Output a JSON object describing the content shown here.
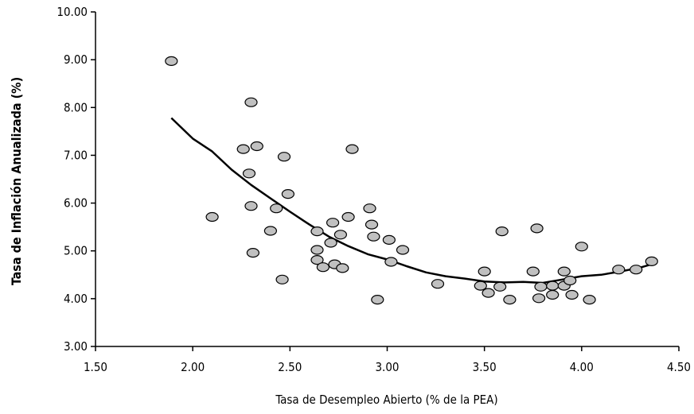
{
  "chart_data": {
    "type": "scatter",
    "title": "",
    "xlabel": "Tasa de Desempleo Abierto (% de la PEA)",
    "ylabel": "Tasa de Inflación Anualizada (%)",
    "xlim": [
      1.5,
      4.5
    ],
    "ylim": [
      3.0,
      10.0
    ],
    "x_ticks": [
      "1.50",
      "2.00",
      "2.50",
      "3.00",
      "3.50",
      "4.00",
      "4.50"
    ],
    "y_ticks": [
      "3.00",
      "4.00",
      "5.00",
      "6.00",
      "7.00",
      "8.00",
      "9.00",
      "10.00"
    ],
    "grid": false,
    "legend": "none",
    "colors": {
      "marker_fill": "#c0c0c0",
      "marker_edge": "#000000",
      "trend": "#000000"
    },
    "series": [
      {
        "kind": "points",
        "points": [
          [
            1.89,
            8.97
          ],
          [
            2.1,
            5.71
          ],
          [
            2.26,
            7.13
          ],
          [
            2.29,
            6.62
          ],
          [
            2.3,
            8.11
          ],
          [
            2.3,
            5.94
          ],
          [
            2.31,
            4.96
          ],
          [
            2.33,
            7.19
          ],
          [
            2.4,
            5.42
          ],
          [
            2.43,
            5.89
          ],
          [
            2.46,
            4.4
          ],
          [
            2.47,
            6.97
          ],
          [
            2.49,
            6.19
          ],
          [
            2.64,
            5.41
          ],
          [
            2.64,
            5.02
          ],
          [
            2.64,
            4.81
          ],
          [
            2.67,
            4.66
          ],
          [
            2.71,
            5.17
          ],
          [
            2.72,
            5.59
          ],
          [
            2.73,
            4.72
          ],
          [
            2.76,
            5.34
          ],
          [
            2.77,
            4.64
          ],
          [
            2.8,
            5.71
          ],
          [
            2.82,
            7.13
          ],
          [
            2.91,
            5.89
          ],
          [
            2.92,
            5.55
          ],
          [
            2.93,
            5.3
          ],
          [
            2.95,
            3.98
          ],
          [
            3.01,
            5.23
          ],
          [
            3.02,
            4.77
          ],
          [
            3.08,
            5.02
          ],
          [
            3.26,
            4.31
          ],
          [
            3.48,
            4.27
          ],
          [
            3.5,
            4.57
          ],
          [
            3.52,
            4.12
          ],
          [
            3.58,
            4.25
          ],
          [
            3.59,
            5.41
          ],
          [
            3.63,
            3.98
          ],
          [
            3.75,
            4.57
          ],
          [
            3.77,
            5.47
          ],
          [
            3.78,
            4.01
          ],
          [
            3.79,
            4.25
          ],
          [
            3.85,
            4.27
          ],
          [
            3.85,
            4.08
          ],
          [
            3.91,
            4.57
          ],
          [
            3.91,
            4.27
          ],
          [
            3.94,
            4.38
          ],
          [
            3.95,
            4.08
          ],
          [
            4.0,
            5.09
          ],
          [
            4.04,
            3.98
          ],
          [
            4.19,
            4.61
          ],
          [
            4.28,
            4.61
          ],
          [
            4.36,
            4.78
          ]
        ]
      },
      {
        "kind": "trend",
        "points": [
          [
            1.89,
            7.78
          ],
          [
            2.0,
            7.35
          ],
          [
            2.1,
            7.08
          ],
          [
            2.2,
            6.7
          ],
          [
            2.3,
            6.38
          ],
          [
            2.4,
            6.1
          ],
          [
            2.5,
            5.82
          ],
          [
            2.6,
            5.55
          ],
          [
            2.7,
            5.3
          ],
          [
            2.8,
            5.1
          ],
          [
            2.9,
            4.93
          ],
          [
            3.0,
            4.82
          ],
          [
            3.1,
            4.68
          ],
          [
            3.2,
            4.55
          ],
          [
            3.3,
            4.47
          ],
          [
            3.4,
            4.42
          ],
          [
            3.5,
            4.36
          ],
          [
            3.6,
            4.34
          ],
          [
            3.7,
            4.35
          ],
          [
            3.8,
            4.33
          ],
          [
            3.9,
            4.4
          ],
          [
            4.0,
            4.47
          ],
          [
            4.1,
            4.5
          ],
          [
            4.2,
            4.57
          ],
          [
            4.3,
            4.65
          ],
          [
            4.36,
            4.72
          ]
        ]
      }
    ]
  }
}
